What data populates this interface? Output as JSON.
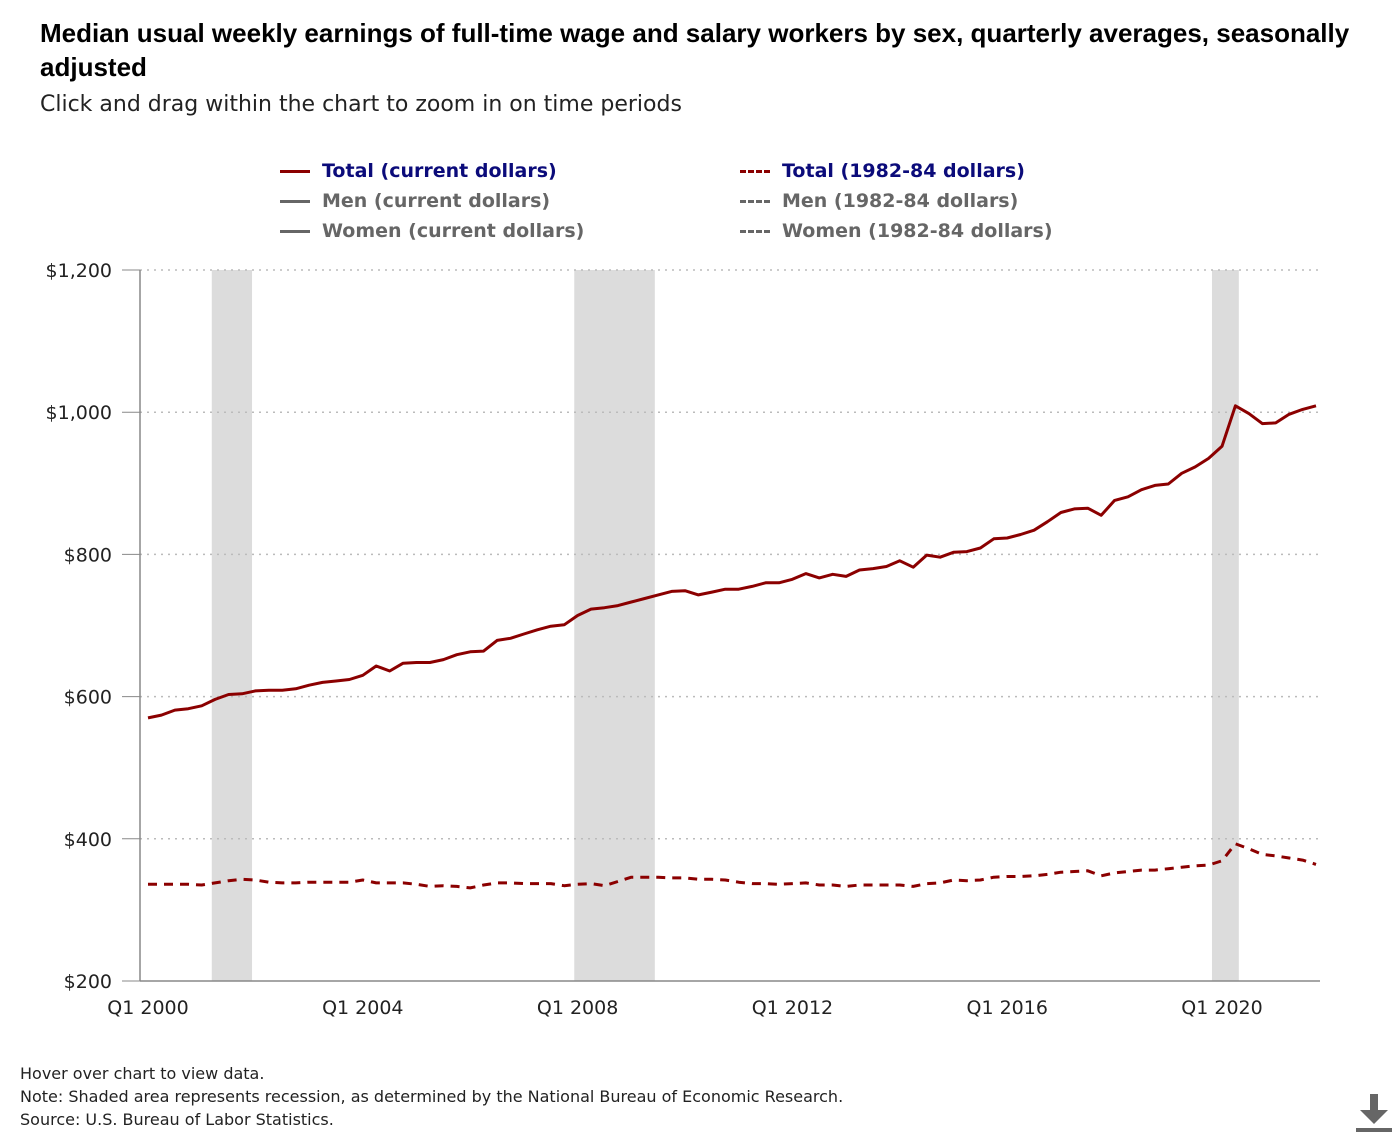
{
  "title": "Median usual weekly earnings of full-time wage and salary workers by sex, quarterly averages, seasonally adjusted",
  "subtitle": "Click and drag within the chart to zoom in on time periods",
  "legend": [
    {
      "label": "Total (current dollars)",
      "style": "solid",
      "color": "#8b0000",
      "active": true
    },
    {
      "label": "Total (1982-84 dollars)",
      "style": "dash",
      "color": "#8b0000",
      "active": true
    },
    {
      "label": "Men (current dollars)",
      "style": "solid",
      "color": "#666666",
      "active": false
    },
    {
      "label": "Men (1982-84 dollars)",
      "style": "dash",
      "color": "#666666",
      "active": false
    },
    {
      "label": "Women (current dollars)",
      "style": "solid",
      "color": "#666666",
      "active": false
    },
    {
      "label": "Women (1982-84 dollars)",
      "style": "dash",
      "color": "#666666",
      "active": false
    }
  ],
  "notes": {
    "hover": "Hover over chart to view data.",
    "note": "Note: Shaded area represents recession, as determined by the National Bureau of Economic Research.",
    "source": "Source: U.S. Bureau of Labor Statistics."
  },
  "colors": {
    "series": "#8b0000",
    "recession": "#dcdcdc",
    "grid": "#bbbbbb",
    "axis": "#888888"
  },
  "icons": {
    "download": "download-icon"
  },
  "chart_data": {
    "type": "line",
    "y_ticks": [
      "$200",
      "$400",
      "$600",
      "$800",
      "$1,000",
      "$1,200"
    ],
    "y_tick_values": [
      200,
      400,
      600,
      800,
      1000,
      1200
    ],
    "ylim": [
      200,
      1200
    ],
    "x_ticks": [
      "Q1 2000",
      "Q1 2004",
      "Q1 2008",
      "Q1 2012",
      "Q1 2016",
      "Q1 2020"
    ],
    "x_tick_index": [
      0,
      16,
      32,
      48,
      64,
      80
    ],
    "grid": true,
    "recessions": [
      {
        "start": 4.75,
        "end": 7.75
      },
      {
        "start": 31.75,
        "end": 37.75
      },
      {
        "start": 79.25,
        "end": 81.25
      }
    ],
    "x": [
      "Q1 2000",
      "Q2 2000",
      "Q3 2000",
      "Q4 2000",
      "Q1 2001",
      "Q2 2001",
      "Q3 2001",
      "Q4 2001",
      "Q1 2002",
      "Q2 2002",
      "Q3 2002",
      "Q4 2002",
      "Q1 2003",
      "Q2 2003",
      "Q3 2003",
      "Q4 2003",
      "Q1 2004",
      "Q2 2004",
      "Q3 2004",
      "Q4 2004",
      "Q1 2005",
      "Q2 2005",
      "Q3 2005",
      "Q4 2005",
      "Q1 2006",
      "Q2 2006",
      "Q3 2006",
      "Q4 2006",
      "Q1 2007",
      "Q2 2007",
      "Q3 2007",
      "Q4 2007",
      "Q1 2008",
      "Q2 2008",
      "Q3 2008",
      "Q4 2008",
      "Q1 2009",
      "Q2 2009",
      "Q3 2009",
      "Q4 2009",
      "Q1 2010",
      "Q2 2010",
      "Q3 2010",
      "Q4 2010",
      "Q1 2011",
      "Q2 2011",
      "Q3 2011",
      "Q4 2011",
      "Q1 2012",
      "Q2 2012",
      "Q3 2012",
      "Q4 2012",
      "Q1 2013",
      "Q2 2013",
      "Q3 2013",
      "Q4 2013",
      "Q1 2014",
      "Q2 2014",
      "Q3 2014",
      "Q4 2014",
      "Q1 2015",
      "Q2 2015",
      "Q3 2015",
      "Q4 2015",
      "Q1 2016",
      "Q2 2016",
      "Q3 2016",
      "Q4 2016",
      "Q1 2017",
      "Q2 2017",
      "Q3 2017",
      "Q4 2017",
      "Q1 2018",
      "Q2 2018",
      "Q3 2018",
      "Q4 2018",
      "Q1 2019",
      "Q2 2019",
      "Q3 2019",
      "Q4 2019",
      "Q1 2020",
      "Q2 2020",
      "Q3 2020",
      "Q4 2020",
      "Q1 2021",
      "Q2 2021",
      "Q3 2021",
      "Q4 2021"
    ],
    "series": [
      {
        "name": "Total (current dollars)",
        "style": "solid",
        "values": [
          570,
          574,
          581,
          583,
          587,
          596,
          603,
          604,
          608,
          609,
          609,
          611,
          616,
          620,
          622,
          624,
          630,
          643,
          636,
          647,
          648,
          648,
          652,
          659,
          663,
          664,
          679,
          682,
          688,
          694,
          699,
          701,
          714,
          723,
          725,
          728,
          733,
          738,
          743,
          748,
          749,
          743,
          747,
          751,
          751,
          755,
          760,
          760,
          765,
          773,
          767,
          772,
          769,
          778,
          780,
          783,
          791,
          782,
          799,
          796,
          803,
          804,
          809,
          822,
          823,
          828,
          834,
          846,
          859,
          864,
          865,
          855,
          876,
          881,
          891,
          897,
          899,
          914,
          923,
          935,
          952,
          1009,
          998,
          984,
          985,
          997,
          1004,
          1009
        ]
      },
      {
        "name": "Total (1982-84 dollars)",
        "style": "dash",
        "values": [
          336,
          336,
          336,
          336,
          335,
          338,
          341,
          343,
          342,
          339,
          338,
          338,
          339,
          339,
          339,
          339,
          342,
          338,
          338,
          338,
          336,
          333,
          334,
          333,
          331,
          335,
          338,
          338,
          337,
          337,
          337,
          334,
          336,
          337,
          334,
          340,
          346,
          346,
          346,
          345,
          345,
          343,
          343,
          342,
          339,
          337,
          337,
          336,
          337,
          338,
          335,
          335,
          333,
          335,
          335,
          335,
          335,
          333,
          337,
          338,
          342,
          341,
          342,
          346,
          347,
          347,
          348,
          350,
          353,
          354,
          355,
          348,
          352,
          354,
          356,
          356,
          358,
          360,
          362,
          363,
          369,
          393,
          386,
          378,
          376,
          373,
          370,
          364
        ]
      }
    ]
  }
}
